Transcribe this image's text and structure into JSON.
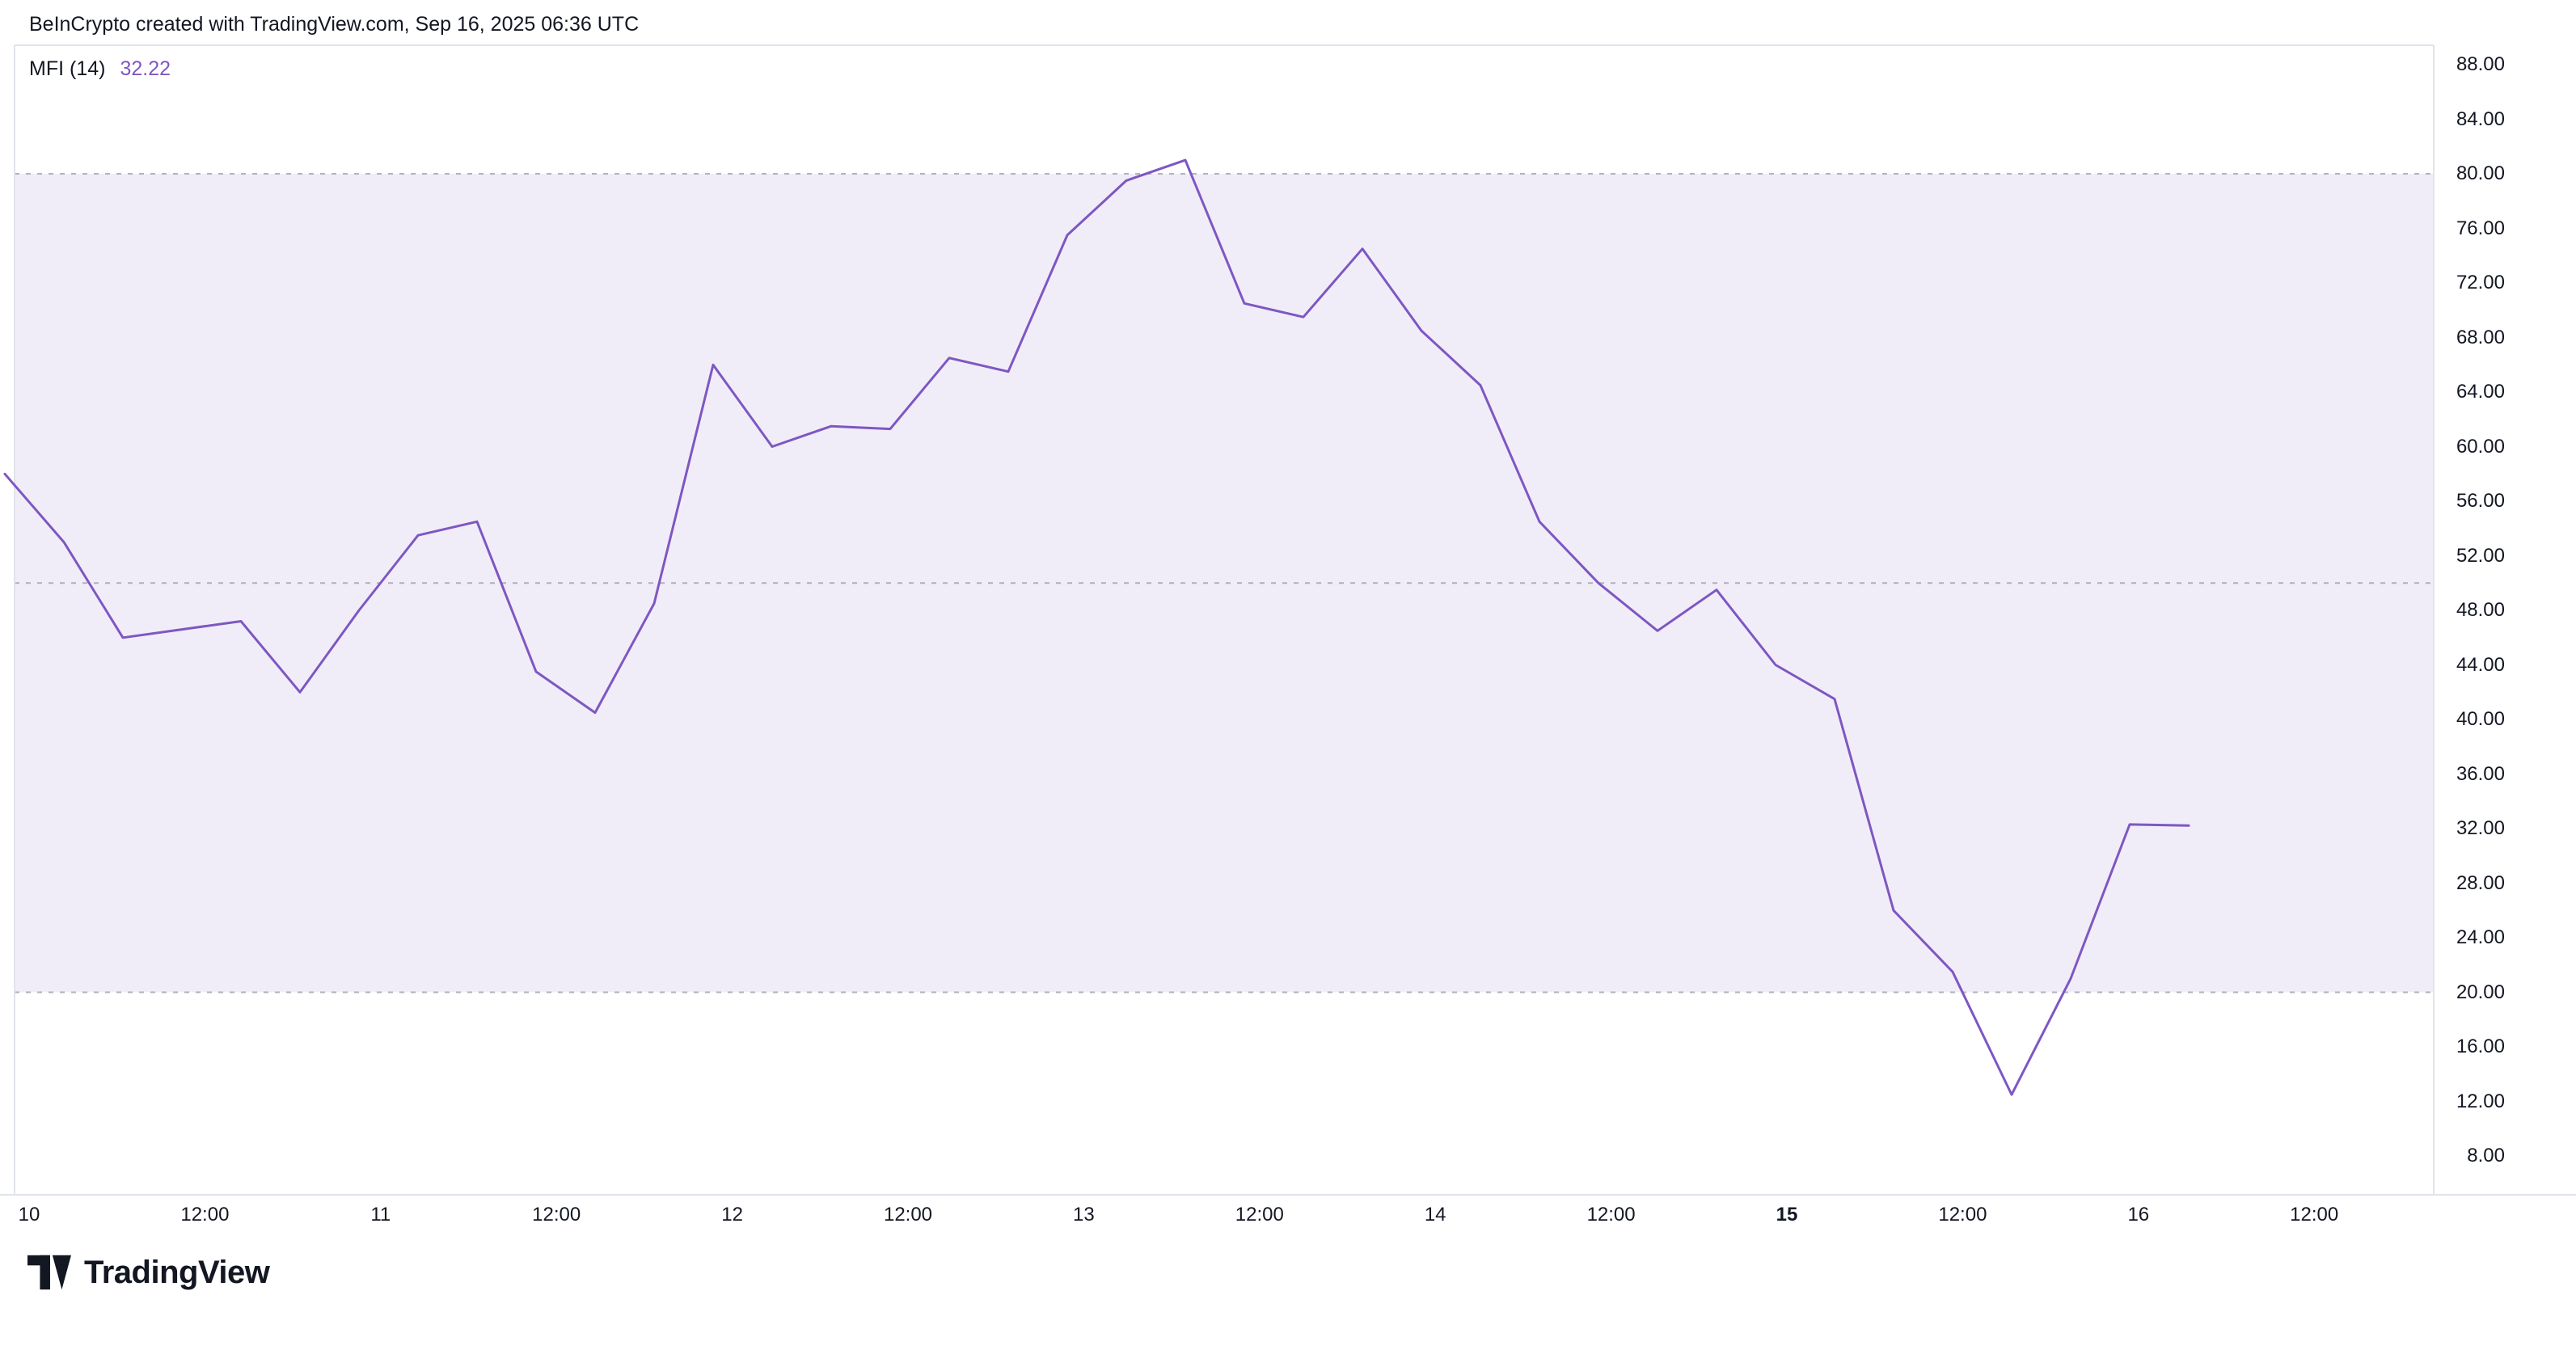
{
  "header": {
    "attribution": "BeInCrypto created with TradingView.com, Sep 16, 2025 06:36 UTC"
  },
  "indicator": {
    "label": "MFI (14)",
    "value": "32.22"
  },
  "footer": {
    "brand": "TradingView"
  },
  "colors": {
    "text": "#131722",
    "accent": "#7e57c2",
    "band_fill": "rgba(126,87,194,0.11)",
    "level_line": "#787b86",
    "axis_border": "#e0e3eb",
    "background": "#ffffff"
  },
  "chart_data": {
    "type": "line",
    "title": "MFI (14)",
    "ylabel": "MFI",
    "y_min": 8,
    "y_max": 88,
    "y_tick_step": 4,
    "y_tick_labels": [
      "88.00",
      "84.00",
      "80.00",
      "76.00",
      "72.00",
      "68.00",
      "64.00",
      "60.00",
      "56.00",
      "52.00",
      "48.00",
      "44.00",
      "40.00",
      "36.00",
      "32.00",
      "28.00",
      "24.00",
      "20.00",
      "16.00",
      "12.00",
      "8.00"
    ],
    "levels": {
      "overbought": 80,
      "middle": 50,
      "oversold": 20
    },
    "band": [
      20,
      80
    ],
    "grid": false,
    "legend_position": "top-left",
    "x_interval_hours": 4,
    "x_tick_labels": [
      {
        "label": "10",
        "bold": false
      },
      {
        "label": "12:00",
        "bold": false
      },
      {
        "label": "11",
        "bold": false
      },
      {
        "label": "12:00",
        "bold": false
      },
      {
        "label": "12",
        "bold": false
      },
      {
        "label": "12:00",
        "bold": false
      },
      {
        "label": "13",
        "bold": false
      },
      {
        "label": "12:00",
        "bold": false
      },
      {
        "label": "14",
        "bold": false
      },
      {
        "label": "12:00",
        "bold": false
      },
      {
        "label": "15",
        "bold": true
      },
      {
        "label": "12:00",
        "bold": false
      },
      {
        "label": "16",
        "bold": false
      },
      {
        "label": "12:00",
        "bold": false
      }
    ],
    "series": [
      {
        "name": "MFI (14)",
        "color": "#7e57c2",
        "values": [
          58,
          53,
          46,
          46.6,
          47.2,
          42,
          48,
          53.5,
          54.5,
          43.5,
          40.5,
          48.5,
          66,
          60,
          61.5,
          61.3,
          66.5,
          65.5,
          75.5,
          79.5,
          81,
          70.5,
          69.5,
          74.5,
          68.5,
          64.5,
          54.5,
          50,
          46.5,
          49.5,
          44,
          41.5,
          26,
          21.5,
          12.5,
          21,
          32.3,
          32.22
        ]
      }
    ],
    "last_value": 32.22
  }
}
